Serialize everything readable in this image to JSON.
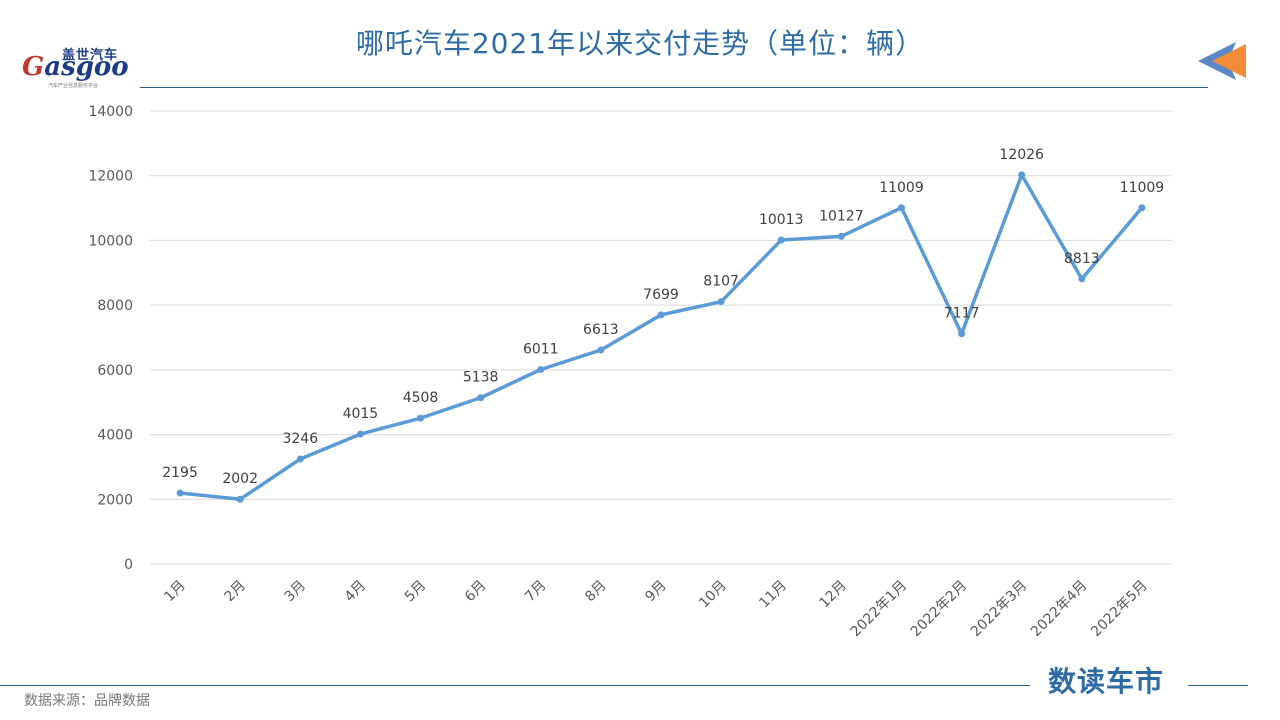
{
  "header": {
    "title": "哪吒汽车2021年以来交付走势（单位：辆）",
    "logo_cn": "盖世汽车",
    "logo_en_g": "G",
    "logo_en_rest": "asgoo",
    "logo_tagline": "汽车产业信息服务平台"
  },
  "footer": {
    "source": "数据来源：品牌数据",
    "brand": "数读车市"
  },
  "colors": {
    "line": "#5b9bd5",
    "grid": "#d9d9d9",
    "title": "#2f6ba3",
    "deco_orange": "#f28c38",
    "deco_blue": "#5b87c5"
  },
  "chart_data": {
    "type": "line",
    "title": "哪吒汽车2021年以来交付走势（单位：辆）",
    "xlabel": "",
    "ylabel": "",
    "categories": [
      "1月",
      "2月",
      "3月",
      "4月",
      "5月",
      "6月",
      "7月",
      "8月",
      "9月",
      "10月",
      "11月",
      "12月",
      "2022年1月",
      "2022年2月",
      "2022年3月",
      "2022年4月",
      "2022年5月"
    ],
    "series": [
      {
        "values": [
          2195,
          2002,
          3246,
          4015,
          4508,
          5138,
          6011,
          6613,
          7699,
          8107,
          10013,
          10127,
          11009,
          7117,
          12026,
          8813,
          11009
        ]
      }
    ],
    "ylim": [
      0,
      14000
    ],
    "yticks": [
      0,
      2000,
      4000,
      6000,
      8000,
      10000,
      12000,
      14000
    ],
    "grid": true,
    "legend": "none"
  }
}
